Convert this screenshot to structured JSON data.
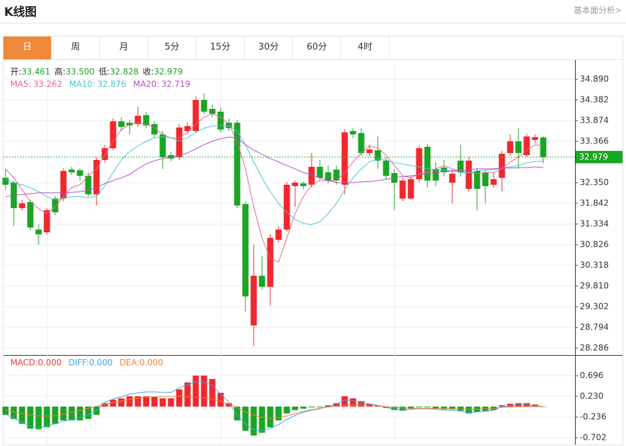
{
  "header": {
    "title": "K线图",
    "link": "基本面分析>"
  },
  "tabs": {
    "items": [
      "日",
      "周",
      "月",
      "5分",
      "15分",
      "30分",
      "60分",
      "4时"
    ],
    "active": 0
  },
  "chart_data": [
    {
      "type": "candlestick",
      "summary": [
        {
          "name": "开:",
          "value": 33.461,
          "label": "33.461",
          "color": "#1ba524"
        },
        {
          "name": "高:",
          "value": 33.5,
          "label": "33.500",
          "color": "#1ba524"
        },
        {
          "name": "低:",
          "value": 32.828,
          "label": "32.828",
          "color": "#1ba524"
        },
        {
          "name": "收:",
          "value": 32.979,
          "label": "32.979",
          "color": "#1ba524"
        }
      ],
      "up_color": "#f0282d",
      "down_color": "#1ba524",
      "open": [
        32.469,
        32.35,
        31.724,
        31.876,
        31.198,
        31.131,
        31.961,
        31.961,
        32.672,
        32.655,
        32.519,
        32.062,
        32.909,
        33.197,
        33.857,
        33.823,
        33.789,
        34.009,
        33.789,
        33.535,
        33.027,
        32.977,
        33.62,
        33.62,
        34.382,
        34.162,
        34.094,
        33.823,
        33.823,
        31.825,
        28.845,
        30.064,
        29.793,
        30.945,
        31.198,
        32.265,
        32.333,
        32.299,
        32.74,
        32.604,
        32.672,
        32.299,
        33.62,
        33.569,
        33.078,
        33.146,
        32.892,
        32.587,
        31.961,
        31.961,
        32.435,
        33.231,
        32.689,
        32.723,
        32.35,
        32.892,
        32.198,
        32.638,
        32.604,
        32.299,
        32.469,
        33.078,
        33.366,
        33.027,
        33.4,
        33.461
      ],
      "high": [
        32.689,
        32.401,
        31.927,
        31.927,
        31.334,
        31.724,
        32.028,
        32.706,
        32.74,
        32.706,
        32.604,
        32.977,
        33.281,
        33.925,
        33.959,
        33.891,
        34.213,
        34.077,
        33.857,
        33.62,
        33.112,
        33.789,
        33.823,
        34.467,
        34.551,
        34.263,
        34.196,
        33.925,
        33.891,
        31.893,
        30.826,
        30.538,
        31.08,
        31.283,
        32.367,
        32.401,
        32.384,
        33.078,
        32.909,
        32.773,
        32.773,
        33.654,
        33.688,
        33.688,
        33.281,
        33.485,
        32.977,
        32.689,
        32.469,
        32.502,
        33.264,
        33.298,
        32.858,
        32.909,
        32.672,
        33.281,
        32.977,
        32.706,
        32.672,
        32.604,
        33.129,
        33.535,
        33.688,
        33.552,
        33.535,
        33.5
      ],
      "low": [
        32.181,
        31.283,
        31.656,
        31.182,
        30.826,
        31.08,
        31.554,
        31.893,
        32.536,
        32.401,
        32.011,
        31.791,
        32.841,
        33.146,
        33.62,
        33.535,
        33.722,
        33.688,
        33.451,
        32.689,
        32.875,
        32.909,
        33.552,
        33.569,
        34.026,
        33.959,
        33.586,
        33.62,
        31.724,
        29.184,
        28.337,
        29.725,
        29.336,
        30.877,
        31.148,
        31.757,
        32.181,
        32.232,
        32.401,
        32.333,
        32.299,
        32.062,
        33.451,
        33.01,
        33.01,
        32.689,
        32.435,
        31.673,
        31.893,
        31.927,
        32.367,
        32.232,
        32.265,
        32.502,
        31.842,
        32.502,
        32.13,
        31.673,
        31.842,
        32.232,
        32.13,
        33.01,
        32.689,
        32.977,
        33.315,
        32.828
      ],
      "close": [
        32.299,
        31.724,
        31.842,
        31.249,
        31.08,
        31.673,
        31.622,
        32.638,
        32.604,
        32.519,
        32.062,
        32.909,
        33.197,
        33.857,
        33.722,
        33.755,
        33.993,
        33.755,
        33.535,
        32.977,
        32.943,
        33.705,
        33.739,
        34.382,
        34.094,
        34.043,
        33.654,
        33.688,
        31.791,
        29.556,
        30.064,
        29.793,
        30.995,
        31.198,
        32.299,
        32.35,
        32.265,
        32.74,
        32.469,
        32.401,
        32.401,
        33.586,
        33.535,
        33.078,
        33.163,
        32.892,
        32.519,
        32.35,
        32.401,
        32.435,
        33.197,
        32.401,
        32.401,
        32.604,
        32.57,
        32.604,
        32.892,
        32.198,
        32.265,
        32.435,
        33.061,
        33.366,
        33.078,
        33.485,
        33.468,
        32.979
      ],
      "series": [
        {
          "name": "MA5:",
          "color": "#e5648e",
          "values": [
            32.69,
            32.47,
            32.18,
            31.89,
            31.71,
            31.59,
            31.76,
            32.01,
            32.23,
            32.3,
            32.52,
            32.69,
            33.03,
            33.37,
            33.65,
            33.79,
            33.82,
            33.79,
            33.7,
            33.53,
            33.45,
            33.45,
            33.59,
            33.79,
            33.96,
            34.04,
            33.96,
            33.79,
            33.37,
            32.69,
            31.76,
            30.99,
            30.49,
            30.4,
            30.99,
            31.59,
            32.01,
            32.3,
            32.4,
            32.4,
            32.4,
            32.6,
            32.86,
            33.08,
            33.25,
            33.2,
            33.03,
            32.77,
            32.52,
            32.47,
            32.57,
            32.6,
            32.69,
            32.77,
            32.69,
            32.64,
            32.6,
            32.57,
            32.6,
            32.6,
            32.69,
            32.86,
            32.98,
            33.15,
            33.28,
            33.262
          ]
        },
        {
          "name": "MA10:",
          "color": "#47c2d6",
          "values": [
            32.43,
            32.35,
            32.3,
            32.23,
            32.13,
            32.01,
            31.93,
            31.96,
            32.01,
            32.01,
            31.98,
            32.01,
            32.27,
            32.6,
            32.91,
            33.11,
            33.25,
            33.37,
            33.45,
            33.48,
            33.45,
            33.37,
            33.45,
            33.59,
            33.69,
            33.74,
            33.76,
            33.74,
            33.62,
            33.28,
            32.86,
            32.47,
            32.13,
            31.84,
            31.62,
            31.45,
            31.35,
            31.32,
            31.39,
            31.59,
            31.84,
            32.18,
            32.47,
            32.69,
            32.86,
            32.94,
            32.91,
            32.84,
            32.81,
            32.77,
            32.74,
            32.69,
            32.67,
            32.66,
            32.64,
            32.6,
            32.6,
            32.64,
            32.66,
            32.67,
            32.71,
            32.74,
            32.77,
            32.84,
            32.87,
            32.876
          ]
        },
        {
          "name": "MA20:",
          "color": "#b150c5",
          "values": [
            32.01,
            32.04,
            32.06,
            32.08,
            32.1,
            32.1,
            32.1,
            32.1,
            32.11,
            32.13,
            32.16,
            32.23,
            32.33,
            32.4,
            32.47,
            32.55,
            32.69,
            32.81,
            32.89,
            32.94,
            32.98,
            33.01,
            33.08,
            33.18,
            33.28,
            33.37,
            33.43,
            33.47,
            33.45,
            33.28,
            33.15,
            33.05,
            32.94,
            32.86,
            32.77,
            32.69,
            32.6,
            32.54,
            32.47,
            32.4,
            32.35,
            32.35,
            32.35,
            32.37,
            32.38,
            32.4,
            32.43,
            32.47,
            32.5,
            32.52,
            32.54,
            32.57,
            32.6,
            32.62,
            32.64,
            32.66,
            32.67,
            32.69,
            32.69,
            32.69,
            32.71,
            32.71,
            32.72,
            32.72,
            32.74,
            32.719
          ]
        }
      ],
      "ylim": [
        28.117,
        35.364
      ],
      "yticks": [
        {
          "value": 34.89,
          "label": "34.890"
        },
        34.382,
        33.874,
        33.366,
        {
          "value": 32.35,
          "label": "32.350"
        },
        31.842,
        31.334,
        30.826,
        30.318,
        {
          "value": 29.81,
          "label": "29.810"
        },
        29.302,
        28.794,
        28.286
      ],
      "grid": true
    },
    {
      "type": "macd",
      "up_color": "#f0282d",
      "down_color": "#1ba524",
      "series": [
        {
          "name": "MACD:",
          "label": "0.000",
          "color": "#e83a30",
          "style": "bar",
          "values": [
            -0.186,
            -0.28,
            -0.388,
            -0.497,
            -0.512,
            -0.466,
            -0.388,
            -0.311,
            -0.311,
            -0.311,
            -0.28,
            -0.186,
            0.078,
            0.155,
            0.186,
            0.233,
            0.233,
            0.233,
            0.217,
            0.186,
            0.186,
            0.388,
            0.544,
            0.699,
            0.699,
            0.621,
            0.311,
            0.078,
            -0.311,
            -0.544,
            -0.652,
            -0.59,
            -0.466,
            -0.311,
            -0.155,
            -0.078,
            -0.047,
            -0.016,
            -0.016,
            0.031,
            0.078,
            0.233,
            0.186,
            0.124,
            0.062,
            0.016,
            -0.031,
            -0.078,
            -0.093,
            -0.047,
            -0.016,
            -0.016,
            -0.047,
            -0.062,
            -0.062,
            -0.093,
            -0.155,
            -0.124,
            -0.109,
            -0.078,
            0.031,
            0.062,
            0.078,
            0.078,
            0.047,
            0
          ]
        },
        {
          "name": "DIFF:",
          "label": "0.000",
          "color": "#3ca5e6",
          "style": "line",
          "values": [
            -0.17,
            -0.26,
            -0.35,
            -0.44,
            -0.47,
            -0.44,
            -0.39,
            -0.33,
            -0.29,
            -0.25,
            -0.18,
            -0.08,
            0.09,
            0.17,
            0.22,
            0.28,
            0.31,
            0.33,
            0.33,
            0.32,
            0.32,
            0.42,
            0.49,
            0.56,
            0.55,
            0.48,
            0.28,
            0.1,
            -0.19,
            -0.39,
            -0.52,
            -0.54,
            -0.49,
            -0.41,
            -0.29,
            -0.2,
            -0.13,
            -0.08,
            -0.05,
            0.01,
            0.05,
            0.15,
            0.13,
            0.1,
            0.06,
            0.03,
            -0.02,
            -0.06,
            -0.08,
            -0.06,
            -0.05,
            -0.05,
            -0.06,
            -0.08,
            -0.08,
            -0.1,
            -0.14,
            -0.12,
            -0.1,
            -0.08,
            0.0,
            0.02,
            0.04,
            0.04,
            0.02,
            0.0
          ]
        },
        {
          "name": "DEA:",
          "label": "0.000",
          "color": "#f08030",
          "style": "line",
          "values": [
            -0.08,
            -0.12,
            -0.16,
            -0.19,
            -0.21,
            -0.21,
            -0.2,
            -0.17,
            -0.13,
            -0.09,
            -0.04,
            0.01,
            0.05,
            0.09,
            0.13,
            0.16,
            0.19,
            0.21,
            0.22,
            0.23,
            0.23,
            0.23,
            0.22,
            0.21,
            0.2,
            0.17,
            0.12,
            0.06,
            -0.03,
            -0.12,
            -0.19,
            -0.24,
            -0.26,
            -0.25,
            -0.21,
            -0.16,
            -0.11,
            -0.07,
            -0.04,
            -0.01,
            0.01,
            0.03,
            0.04,
            0.04,
            0.03,
            0.02,
            0.0,
            -0.02,
            -0.03,
            -0.04,
            -0.04,
            -0.04,
            -0.04,
            -0.05,
            -0.05,
            -0.05,
            -0.06,
            -0.06,
            -0.05,
            -0.04,
            -0.02,
            -0.01,
            0.0,
            0.0,
            0.0,
            0.0
          ]
        }
      ],
      "ylim": [
        -0.857,
        1.131
      ],
      "yticks": [
        0.696,
        {
          "value": 0.23,
          "label": "0.230"
        },
        -0.236,
        -0.702
      ],
      "grid": true
    }
  ]
}
